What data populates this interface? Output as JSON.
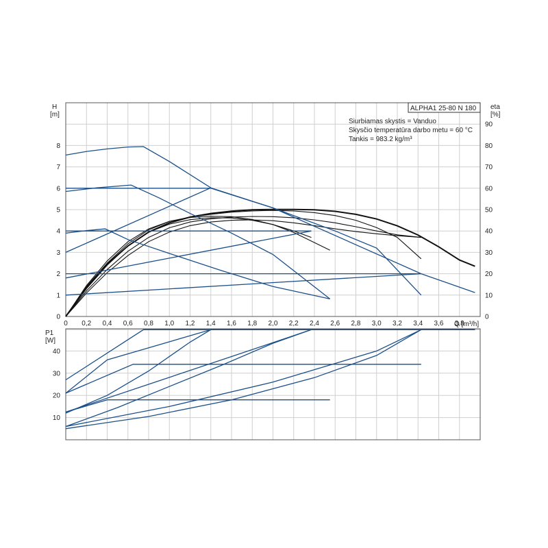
{
  "model_label": "ALPHA1 25-80 N 180",
  "info_lines": [
    "Siurbiamas skystis = Vanduo",
    "Skysčio temperatūra darbo metu = 60 °C",
    "Tankis = 983.2 kg/m³"
  ],
  "chart_data": [
    {
      "type": "line",
      "title": "",
      "x_label": "Q [m³/h]",
      "y_label_top": "H",
      "y_label_unit": "[m]",
      "y2_label_top": "eta",
      "y2_label_unit": "[%]",
      "xlim": [
        0,
        4.0
      ],
      "ylim": [
        0,
        10
      ],
      "y2lim": [
        0,
        100
      ],
      "x_ticks": [
        "0",
        "0,2",
        "0,4",
        "0,6",
        "0,8",
        "1,0",
        "1,2",
        "1,4",
        "1,6",
        "1,8",
        "2,0",
        "2,2",
        "2,4",
        "2,6",
        "2,8",
        "3,0",
        "3,2",
        "3,4",
        "3,6",
        "3,8"
      ],
      "y_ticks": [
        "0",
        "1",
        "2",
        "3",
        "4",
        "5",
        "6",
        "7",
        "8"
      ],
      "y2_ticks": [
        "0",
        "10",
        "20",
        "30",
        "40",
        "50",
        "60",
        "70",
        "80",
        "90"
      ],
      "grid": true,
      "head_curves": [
        {
          "color": "#1a4f8a",
          "x": [
            0,
            0.2,
            0.4,
            0.6,
            0.75,
            1.0,
            1.4,
            2.0,
            2.6,
            3.0,
            3.43
          ],
          "y": [
            7.55,
            7.72,
            7.84,
            7.93,
            7.95,
            7.25,
            6.02,
            5.08,
            4.0,
            3.2,
            1.0
          ]
        },
        {
          "color": "#1a4f8a",
          "x": [
            0,
            0.3,
            0.63,
            0.9,
            1.2,
            1.6,
            2.0,
            2.55
          ],
          "y": [
            5.85,
            6.02,
            6.15,
            5.55,
            4.82,
            3.9,
            2.9,
            0.82
          ]
        },
        {
          "color": "#1a4f8a",
          "x": [
            0,
            0.2,
            0.38,
            0.6,
            1.0,
            1.5,
            2.0,
            2.55
          ],
          "y": [
            3.9,
            4.02,
            4.1,
            3.6,
            2.95,
            2.15,
            1.4,
            0.82
          ]
        },
        {
          "color": "#1a4f8a",
          "x": [
            0,
            1.4,
            2.0,
            3.43,
            3.95
          ],
          "y": [
            6.0,
            6.0,
            5.08,
            2.0,
            1.12
          ]
        },
        {
          "color": "#1a4f8a",
          "x": [
            0,
            2.37
          ],
          "y": [
            4.0,
            4.0
          ]
        },
        {
          "color": "#1a4f8a",
          "x": [
            0,
            3.43
          ],
          "y": [
            2.0,
            2.0
          ]
        },
        {
          "color": "#1a4f8a",
          "x": [
            0,
            1.4
          ],
          "y": [
            3.0,
            6.02
          ]
        },
        {
          "color": "#1a4f8a",
          "x": [
            0,
            2.37
          ],
          "y": [
            1.8,
            4.0
          ]
        },
        {
          "color": "#1a4f8a",
          "x": [
            0,
            3.43
          ],
          "y": [
            1.0,
            2.0
          ]
        }
      ],
      "efficiency_curves": [
        {
          "color": "#111111",
          "x": [
            0,
            0.2,
            0.4,
            0.6,
            0.8,
            1.0,
            1.2,
            1.4,
            1.6,
            1.8,
            2.0,
            2.2,
            2.4,
            2.6,
            2.8,
            3.0,
            3.2,
            3.4,
            3.6,
            3.8,
            3.95
          ],
          "y": [
            0,
            13.5,
            24.5,
            33,
            39.5,
            43.8,
            46.5,
            48.2,
            49.3,
            49.9,
            50.1,
            50.1,
            49.9,
            49.2,
            47.8,
            45.6,
            42.4,
            38.1,
            32.6,
            26.4,
            23.5
          ]
        },
        {
          "color": "#111111",
          "x": [
            0,
            0.2,
            0.4,
            0.6,
            0.8,
            1.0,
            1.2,
            1.4,
            1.6,
            1.8,
            2.0,
            2.2,
            2.4,
            2.6,
            2.8,
            3.0,
            3.2,
            3.43
          ],
          "y": [
            0,
            14,
            25,
            34,
            40.5,
            44.5,
            46.5,
            47.8,
            48.8,
            49.4,
            49.6,
            49.4,
            48.6,
            47.2,
            45,
            41.6,
            37,
            27
          ]
        },
        {
          "color": "#111111",
          "x": [
            0,
            0.2,
            0.4,
            0.6,
            0.8,
            1.0,
            1.2,
            1.4,
            1.6,
            1.8,
            2.0,
            2.2,
            2.55
          ],
          "y": [
            0,
            14.5,
            26,
            35,
            41,
            44.5,
            46.3,
            46.9,
            46.7,
            45.4,
            43,
            39.3,
            31
          ]
        },
        {
          "color": "#111111",
          "x": [
            0,
            0.2,
            0.4,
            0.6,
            0.8,
            1.0,
            1.2,
            1.4,
            1.6,
            1.8,
            2.0,
            2.2,
            2.37
          ],
          "y": [
            0,
            13,
            24,
            33,
            39.5,
            43.2,
            45.3,
            46.2,
            46.1,
            45,
            43,
            40,
            37
          ]
        },
        {
          "color": "#111111",
          "x": [
            0,
            0.2,
            0.4,
            0.6,
            0.8,
            1.0,
            1.2,
            1.4,
            1.6,
            1.8,
            2.0,
            2.2,
            2.4,
            2.6,
            2.8,
            3.0,
            3.2,
            3.43
          ],
          "y": [
            0,
            12,
            22,
            30.5,
            37,
            41.5,
            44.2,
            45.7,
            46.5,
            46.8,
            46.7,
            46.2,
            45.2,
            43.8,
            42,
            40,
            38.2,
            37
          ]
        },
        {
          "color": "#111111",
          "x": [
            0,
            0.2,
            0.4,
            0.6,
            0.8,
            1.0,
            1.2,
            1.4,
            1.6,
            1.8,
            2.0,
            2.2,
            2.4,
            2.6,
            2.8,
            3.0,
            3.2,
            3.43
          ],
          "y": [
            0,
            11,
            20.5,
            28.5,
            35,
            39.5,
            42.5,
            44.2,
            45,
            45.2,
            44.8,
            43.8,
            42.5,
            41,
            39.7,
            38.7,
            37.8,
            37
          ]
        }
      ]
    },
    {
      "type": "line",
      "title": "",
      "x_label": "",
      "y_label_top": "P1",
      "y_label_unit": "[W]",
      "xlim": [
        0,
        4.0
      ],
      "ylim": [
        0,
        50
      ],
      "y_ticks": [
        "10",
        "20",
        "30",
        "40"
      ],
      "grid": true,
      "power_curves": [
        {
          "color": "#1a4f8a",
          "x": [
            0,
            0.75,
            3.95
          ],
          "y": [
            27,
            49.6,
            49.6
          ]
        },
        {
          "color": "#1a4f8a",
          "x": [
            0,
            0.65,
            3.43
          ],
          "y": [
            21,
            34,
            34
          ]
        },
        {
          "color": "#1a4f8a",
          "x": [
            0,
            0.4,
            2.55
          ],
          "y": [
            12.5,
            18,
            18
          ]
        },
        {
          "color": "#1a4f8a",
          "x": [
            0,
            0.4,
            0.8,
            1.2,
            1.4,
            3.95
          ],
          "y": [
            12,
            20,
            31,
            44,
            49.6,
            49.6
          ]
        },
        {
          "color": "#1a4f8a",
          "x": [
            0,
            0.5,
            1.0,
            1.5,
            2.0,
            2.37
          ],
          "y": [
            6,
            14.5,
            24,
            33.5,
            43.5,
            49.6
          ]
        },
        {
          "color": "#1a4f8a",
          "x": [
            0,
            0.8,
            1.6,
            2.4,
            3.0,
            3.43
          ],
          "y": [
            5,
            10.5,
            18,
            28,
            38,
            49.6
          ]
        },
        {
          "color": "#1a4f8a",
          "x": [
            0,
            0.4,
            1.4
          ],
          "y": [
            21,
            36,
            49.6
          ]
        },
        {
          "color": "#1a4f8a",
          "x": [
            0,
            0.8,
            1.6,
            2.37
          ],
          "y": [
            12.5,
            25,
            37.5,
            49.6
          ]
        },
        {
          "color": "#1a4f8a",
          "x": [
            0,
            1.0,
            2.0,
            3.0,
            3.43
          ],
          "y": [
            6,
            15,
            26,
            40,
            49.6
          ]
        }
      ]
    }
  ]
}
